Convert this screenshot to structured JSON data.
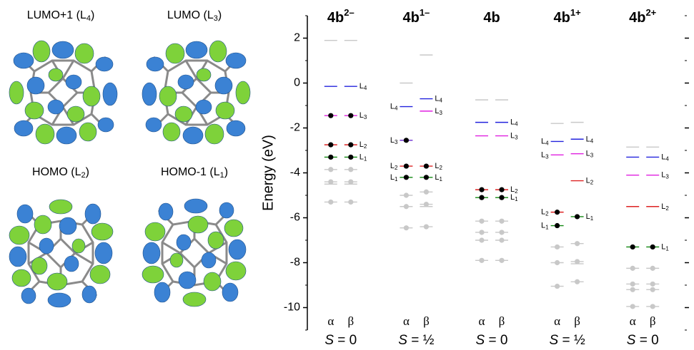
{
  "orbitals": [
    {
      "parts": [
        "LUMO+1 (L",
        "4",
        ")"
      ]
    },
    {
      "parts": [
        "LUMO (L",
        "3",
        ")"
      ]
    },
    {
      "parts": [
        "HOMO (L",
        "2",
        ")"
      ]
    },
    {
      "parts": [
        "HOMO-1 (L",
        "1",
        ")"
      ]
    }
  ],
  "chart_data": {
    "type": "energy-levels",
    "y_label": "Energy (eV)",
    "ylim": [
      -11,
      3
    ],
    "yticks": [
      2,
      0,
      -2,
      -4,
      -6,
      -8,
      -10
    ],
    "minor_yticks": [
      3,
      1,
      -1,
      -3,
      -5,
      -7,
      -9,
      -11
    ],
    "mirror_ticks": true,
    "spin_labels": [
      "α",
      "β"
    ],
    "groups": [
      {
        "name": "4b",
        "charge": "2–",
        "spin_symbol": "S",
        "spin_value": " = 0",
        "alpha": [
          {
            "value": 1.9,
            "color": "#c8c8c8"
          },
          {
            "value": -0.15,
            "color": "#2222dd"
          },
          {
            "value": -1.45,
            "color": "#e020e0",
            "dot": "#000"
          },
          {
            "value": -2.75,
            "color": "#dd2222",
            "dot": "#000"
          },
          {
            "value": -3.3,
            "color": "#118811",
            "dot": "#000"
          },
          {
            "value": -3.85,
            "color": "#c8c8c8",
            "dot": "#c8c8c8"
          },
          {
            "value": -4.4,
            "color": "#c8c8c8",
            "dot": "#c8c8c8"
          },
          {
            "value": -4.5,
            "color": "#c8c8c8"
          },
          {
            "value": -5.3,
            "color": "#c8c8c8",
            "dot": "#c8c8c8"
          }
        ],
        "beta": [
          {
            "value": 1.9,
            "color": "#c8c8c8"
          },
          {
            "value": -0.15,
            "color": "#2222dd",
            "label": "L",
            "sub": "4"
          },
          {
            "value": -1.45,
            "color": "#e020e0",
            "dot": "#000",
            "label": "L",
            "sub": "3"
          },
          {
            "value": -2.75,
            "color": "#dd2222",
            "dot": "#000",
            "label": "L",
            "sub": "2"
          },
          {
            "value": -3.3,
            "color": "#118811",
            "dot": "#000",
            "label": "L",
            "sub": "1"
          },
          {
            "value": -3.85,
            "color": "#c8c8c8",
            "dot": "#c8c8c8"
          },
          {
            "value": -4.4,
            "color": "#c8c8c8",
            "dot": "#c8c8c8"
          },
          {
            "value": -4.5,
            "color": "#c8c8c8"
          },
          {
            "value": -5.3,
            "color": "#c8c8c8",
            "dot": "#c8c8c8"
          }
        ]
      },
      {
        "name": "4b",
        "charge": "1–",
        "spin_symbol": "S",
        "spin_value": " = ½",
        "alpha": [
          {
            "value": 0,
            "color": "#c8c8c8"
          },
          {
            "value": -1.05,
            "color": "#2222dd",
            "label": "L",
            "sub": "4"
          },
          {
            "value": -2.55,
            "color": "#6a2ad0",
            "dot": "#000",
            "label": "L",
            "sub": "3"
          },
          {
            "value": -3.7,
            "color": "#dd2222",
            "dot": "#000",
            "label": "L",
            "sub": "2"
          },
          {
            "value": -4.2,
            "color": "#118811",
            "dot": "#000",
            "label": "L",
            "sub": "1"
          },
          {
            "value": -5.0,
            "color": "#c8c8c8",
            "dot": "#c8c8c8"
          },
          {
            "value": -5.5,
            "color": "#c8c8c8",
            "dot": "#c8c8c8"
          },
          {
            "value": -6.45,
            "color": "#c8c8c8",
            "dot": "#c8c8c8"
          }
        ],
        "beta": [
          {
            "value": 1.25,
            "color": "#c8c8c8"
          },
          {
            "value": -0.7,
            "color": "#2222dd",
            "label": "L",
            "sub": "4"
          },
          {
            "value": -1.25,
            "color": "#e020e0",
            "label": "L",
            "sub": "3"
          },
          {
            "value": -3.7,
            "color": "#dd2222",
            "dot": "#000",
            "label": "L",
            "sub": "2"
          },
          {
            "value": -4.2,
            "color": "#118811",
            "dot": "#000",
            "label": "L",
            "sub": "1"
          },
          {
            "value": -4.85,
            "color": "#c8c8c8",
            "dot": "#c8c8c8"
          },
          {
            "value": -5.4,
            "color": "#c8c8c8",
            "dot": "#c8c8c8"
          },
          {
            "value": -5.5,
            "color": "#c8c8c8"
          },
          {
            "value": -6.4,
            "color": "#c8c8c8",
            "dot": "#c8c8c8"
          }
        ]
      },
      {
        "name": "4b",
        "spin_symbol": "S",
        "spin_value": " = 0",
        "alpha": [
          {
            "value": -0.75,
            "color": "#c8c8c8"
          },
          {
            "value": -1.75,
            "color": "#2222dd"
          },
          {
            "value": -2.35,
            "color": "#e020e0"
          },
          {
            "value": -4.75,
            "color": "#dd2222",
            "dot": "#000"
          },
          {
            "value": -5.1,
            "color": "#118811",
            "dot": "#000"
          },
          {
            "value": -6.15,
            "color": "#c8c8c8",
            "dot": "#c8c8c8"
          },
          {
            "value": -6.65,
            "color": "#c8c8c8",
            "dot": "#c8c8c8"
          },
          {
            "value": -7.0,
            "color": "#c8c8c8",
            "dot": "#c8c8c8"
          },
          {
            "value": -7.9,
            "color": "#c8c8c8",
            "dot": "#c8c8c8"
          }
        ],
        "beta": [
          {
            "value": -0.75,
            "color": "#c8c8c8"
          },
          {
            "value": -1.75,
            "color": "#2222dd",
            "label": "L",
            "sub": "4"
          },
          {
            "value": -2.35,
            "color": "#e020e0",
            "label": "L",
            "sub": "3"
          },
          {
            "value": -4.75,
            "color": "#dd2222",
            "dot": "#000",
            "label": "L",
            "sub": "2"
          },
          {
            "value": -5.1,
            "color": "#118811",
            "dot": "#000",
            "label": "L",
            "sub": "1"
          },
          {
            "value": -6.15,
            "color": "#c8c8c8",
            "dot": "#c8c8c8"
          },
          {
            "value": -6.65,
            "color": "#c8c8c8",
            "dot": "#c8c8c8"
          },
          {
            "value": -7.0,
            "color": "#c8c8c8",
            "dot": "#c8c8c8"
          },
          {
            "value": -7.9,
            "color": "#c8c8c8",
            "dot": "#c8c8c8"
          }
        ]
      },
      {
        "name": "4b",
        "charge": "1+",
        "spin_symbol": "S",
        "spin_value": " = ½",
        "alpha": [
          {
            "value": -1.8,
            "color": "#c8c8c8"
          },
          {
            "value": -2.6,
            "color": "#2222dd",
            "label": "L",
            "sub": "4"
          },
          {
            "value": -3.2,
            "color": "#e020e0",
            "label": "L",
            "sub": "3"
          },
          {
            "value": -5.75,
            "color": "#dd2222",
            "dot": "#000",
            "label": "L",
            "sub": "2"
          },
          {
            "value": -6.35,
            "color": "#118811",
            "dot": "#000",
            "label": "L",
            "sub": "1"
          },
          {
            "value": -7.3,
            "color": "#c8c8c8",
            "dot": "#c8c8c8"
          },
          {
            "value": -8.0,
            "color": "#c8c8c8",
            "dot": "#c8c8c8"
          },
          {
            "value": -9.05,
            "color": "#c8c8c8",
            "dot": "#c8c8c8"
          }
        ],
        "beta": [
          {
            "value": -1.75,
            "color": "#c8c8c8"
          },
          {
            "value": -2.5,
            "color": "#2222dd",
            "label": "L",
            "sub": "4"
          },
          {
            "value": -3.15,
            "color": "#e020e0",
            "label": "L",
            "sub": "3"
          },
          {
            "value": -4.35,
            "color": "#dd2222",
            "label": "L",
            "sub": "2"
          },
          {
            "value": -5.95,
            "color": "#118811",
            "dot": "#000",
            "label": "L",
            "sub": "1"
          },
          {
            "value": -7.15,
            "color": "#c8c8c8",
            "dot": "#c8c8c8"
          },
          {
            "value": -7.95,
            "color": "#c8c8c8",
            "dot": "#c8c8c8"
          },
          {
            "value": -8.05,
            "color": "#c8c8c8"
          },
          {
            "value": -8.85,
            "color": "#c8c8c8",
            "dot": "#c8c8c8"
          }
        ]
      },
      {
        "name": "4b",
        "charge": "2+",
        "spin_symbol": "S",
        "spin_value": " = 0",
        "alpha": [
          {
            "value": -2.85,
            "color": "#c8c8c8"
          },
          {
            "value": -3.3,
            "color": "#2222dd"
          },
          {
            "value": -4.1,
            "color": "#e020e0"
          },
          {
            "value": -5.5,
            "color": "#dd2222"
          },
          {
            "value": -7.3,
            "color": "#118811",
            "dot": "#000"
          },
          {
            "value": -8.25,
            "color": "#c8c8c8",
            "dot": "#c8c8c8"
          },
          {
            "value": -8.95,
            "color": "#c8c8c8",
            "dot": "#c8c8c8"
          },
          {
            "value": -9.2,
            "color": "#c8c8c8",
            "dot": "#c8c8c8"
          },
          {
            "value": -9.95,
            "color": "#c8c8c8",
            "dot": "#c8c8c8"
          }
        ],
        "beta": [
          {
            "value": -2.85,
            "color": "#c8c8c8"
          },
          {
            "value": -3.3,
            "color": "#2222dd",
            "label": "L",
            "sub": "4"
          },
          {
            "value": -4.1,
            "color": "#e020e0",
            "label": "L",
            "sub": "3"
          },
          {
            "value": -5.5,
            "color": "#dd2222",
            "label": "L",
            "sub": "2"
          },
          {
            "value": -7.3,
            "color": "#118811",
            "dot": "#000",
            "label": "L",
            "sub": "1"
          },
          {
            "value": -8.25,
            "color": "#c8c8c8",
            "dot": "#c8c8c8"
          },
          {
            "value": -8.95,
            "color": "#c8c8c8",
            "dot": "#c8c8c8"
          },
          {
            "value": -9.2,
            "color": "#c8c8c8",
            "dot": "#c8c8c8"
          },
          {
            "value": -9.95,
            "color": "#c8c8c8",
            "dot": "#c8c8c8"
          }
        ]
      }
    ]
  }
}
